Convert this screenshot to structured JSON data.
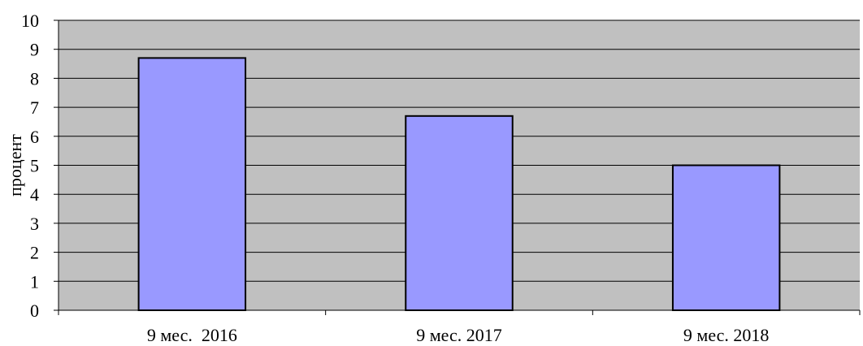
{
  "chart_data": {
    "type": "bar",
    "title": "",
    "xlabel": "",
    "ylabel": "процент",
    "categories": [
      "9 мес.  2016",
      "9 мес. 2017",
      "9 мес. 2018"
    ],
    "values": [
      8.7,
      6.7,
      5.0
    ],
    "ylim": [
      0,
      10
    ],
    "yticks": [
      "0",
      "1",
      "2",
      "3",
      "4",
      "5",
      "6",
      "7",
      "8",
      "9",
      "10"
    ],
    "grid": true,
    "legend": "none",
    "colors": {
      "bar_fill": "#9999ff",
      "bar_stroke": "#000000",
      "plot_background": "#c0c0c0",
      "gridline": "#000000"
    }
  }
}
